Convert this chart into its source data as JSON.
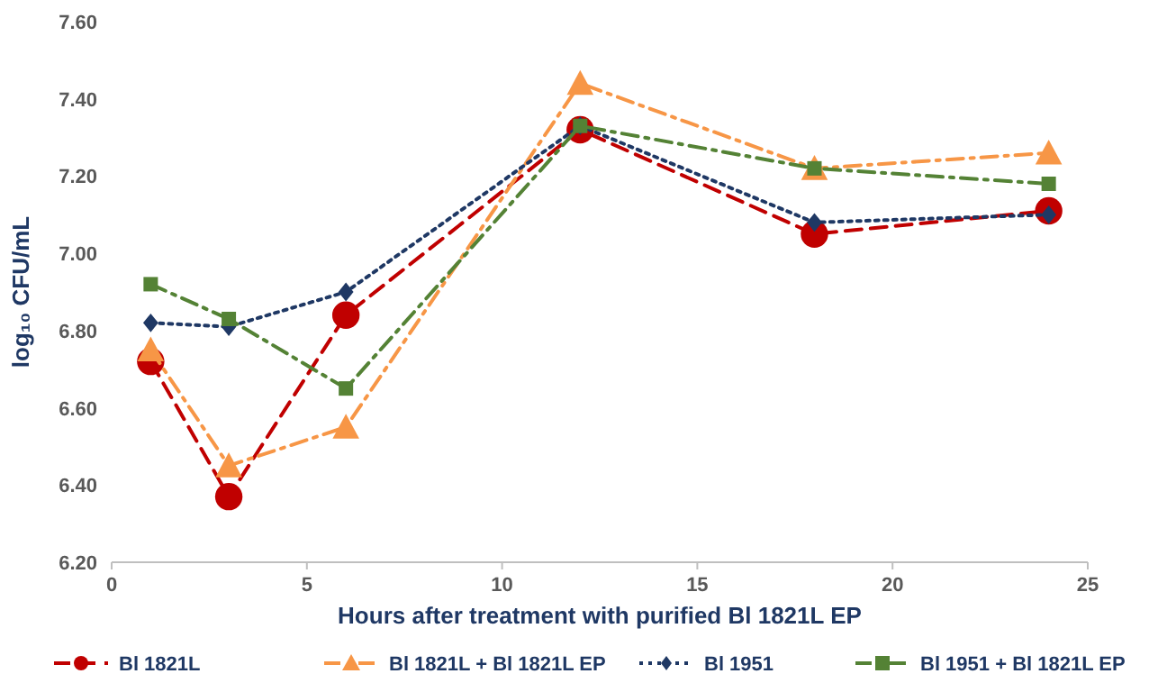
{
  "chart_data": {
    "type": "line",
    "xlabel": "Hours after treatment with purified Bl 1821L EP",
    "ylabel": "log₁₀ CFU/mL",
    "xlim": [
      0,
      25
    ],
    "xticks": [
      0,
      5,
      10,
      15,
      20,
      25
    ],
    "ylim": [
      6.2,
      7.6
    ],
    "yticks": [
      {
        "value": 6.2,
        "label": "6.20"
      },
      {
        "value": 6.4,
        "label": "6.40"
      },
      {
        "value": 6.6,
        "label": "6.60"
      },
      {
        "value": 6.8,
        "label": "6.80"
      },
      {
        "value": 7.0,
        "label": "7.00"
      },
      {
        "value": 7.2,
        "label": "7.20"
      },
      {
        "value": 7.4,
        "label": "7.40"
      },
      {
        "value": 7.6,
        "label": "7.60"
      }
    ],
    "legend": "bottom",
    "x": [
      1,
      3,
      6,
      12,
      18,
      24
    ],
    "series": [
      {
        "name": "Bl 1821L",
        "color": "#c00000",
        "marker": "circle",
        "line_style": "dashed",
        "values": [
          6.72,
          6.37,
          6.84,
          7.32,
          7.05,
          7.11
        ]
      },
      {
        "name": "Bl 1821L + Bl 1821L EP",
        "color": "#f79646",
        "marker": "triangle",
        "line_style": "dashdot",
        "values": [
          6.75,
          6.45,
          6.55,
          7.44,
          7.22,
          7.26
        ]
      },
      {
        "name": "Bl 1951",
        "color": "#1f3864",
        "marker": "diamond",
        "line_style": "dotted",
        "values": [
          6.82,
          6.81,
          6.9,
          7.33,
          7.08,
          7.1
        ]
      },
      {
        "name": "Bl 1951 + Bl 1821L EP",
        "color": "#548235",
        "marker": "square",
        "line_style": "dashdot",
        "values": [
          6.92,
          6.83,
          6.65,
          7.33,
          7.22,
          7.18
        ]
      }
    ]
  }
}
